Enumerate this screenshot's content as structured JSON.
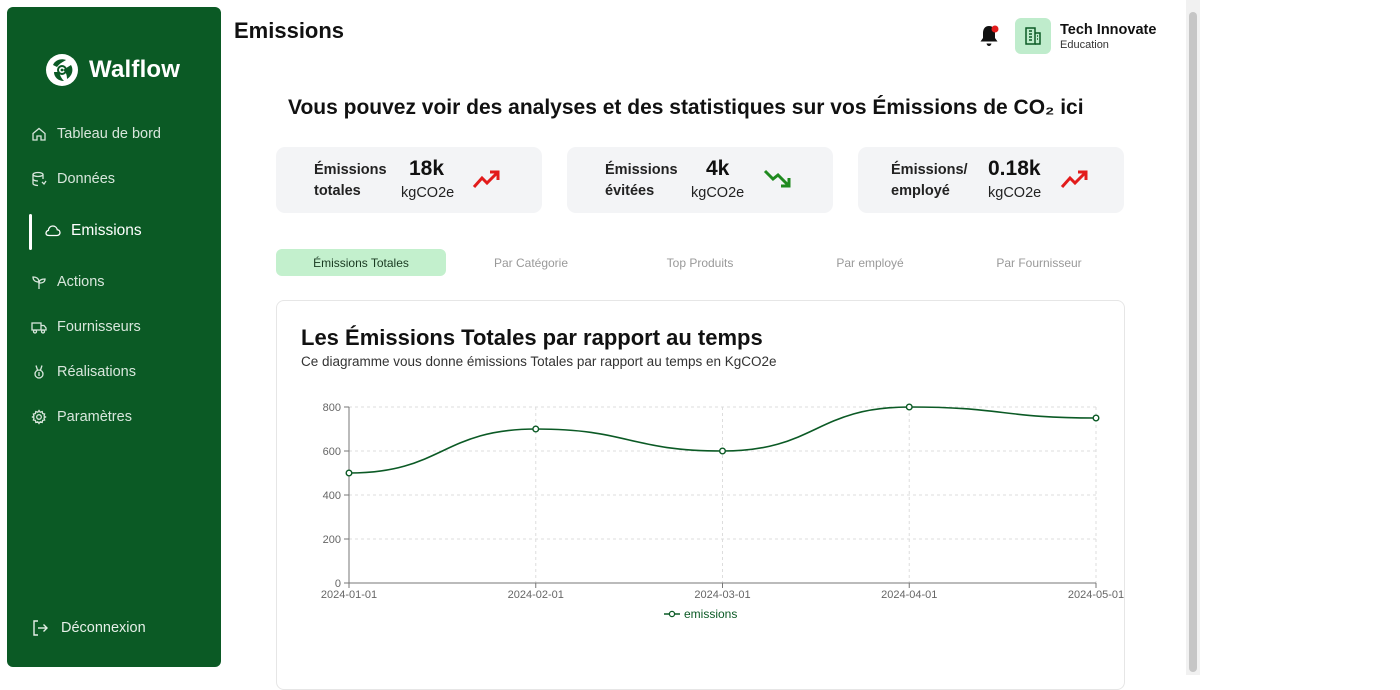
{
  "brand": {
    "name": "Walflow"
  },
  "sidebar": {
    "items": [
      {
        "label": "Tableau de bord",
        "icon": "home-icon"
      },
      {
        "label": "Données",
        "icon": "database-icon"
      },
      {
        "label": "Emissions",
        "icon": "cloud-icon",
        "active": true
      },
      {
        "label": "Actions",
        "icon": "sprout-icon"
      },
      {
        "label": "Fournisseurs",
        "icon": "truck-icon"
      },
      {
        "label": "Réalisations",
        "icon": "award-icon"
      },
      {
        "label": "Paramètres",
        "icon": "gear-icon"
      }
    ],
    "logout_label": "Déconnexion"
  },
  "header": {
    "title": "Emissions",
    "org_name": "Tech Innovate",
    "org_sub": "Education"
  },
  "headline": "Vous pouvez voir des analyses et des statistiques sur vos Émissions de CO₂ ici",
  "stats": [
    {
      "label": "Émissions\ntotales",
      "value": "18k",
      "unit": "kgCO2e",
      "trend": "up",
      "color": "#e21b1b"
    },
    {
      "label": "Émissions\névitées",
      "value": "4k",
      "unit": "kgCO2e",
      "trend": "down",
      "color": "#1f8a1f"
    },
    {
      "label": "Émissions/\nemployé",
      "value": "0.18k",
      "unit": "kgCO2e",
      "trend": "up",
      "color": "#e21b1b"
    }
  ],
  "tabs": [
    {
      "label": "Émissions Totales",
      "active": true
    },
    {
      "label": "Par Catégorie"
    },
    {
      "label": "Top Produits"
    },
    {
      "label": "Par employé"
    },
    {
      "label": "Par Fournisseur"
    }
  ],
  "chart": {
    "title": "Les Émissions Totales par rapport au temps",
    "subtitle": "Ce diagramme vous donne émissions Totales par rapport au temps en KgCO2e"
  },
  "chart_data": {
    "type": "line",
    "title": "Les Émissions Totales par rapport au temps",
    "x": [
      "2024-01-01",
      "2024-02-01",
      "2024-03-01",
      "2024-04-01",
      "2024-05-01"
    ],
    "series": [
      {
        "name": "emissions",
        "values": [
          500,
          700,
          600,
          800,
          750
        ]
      }
    ],
    "ylim": [
      0,
      800
    ],
    "yticks": [
      0,
      200,
      400,
      600,
      800
    ],
    "grid": true,
    "legend": "bottom-center",
    "color": "#0b5a25"
  }
}
